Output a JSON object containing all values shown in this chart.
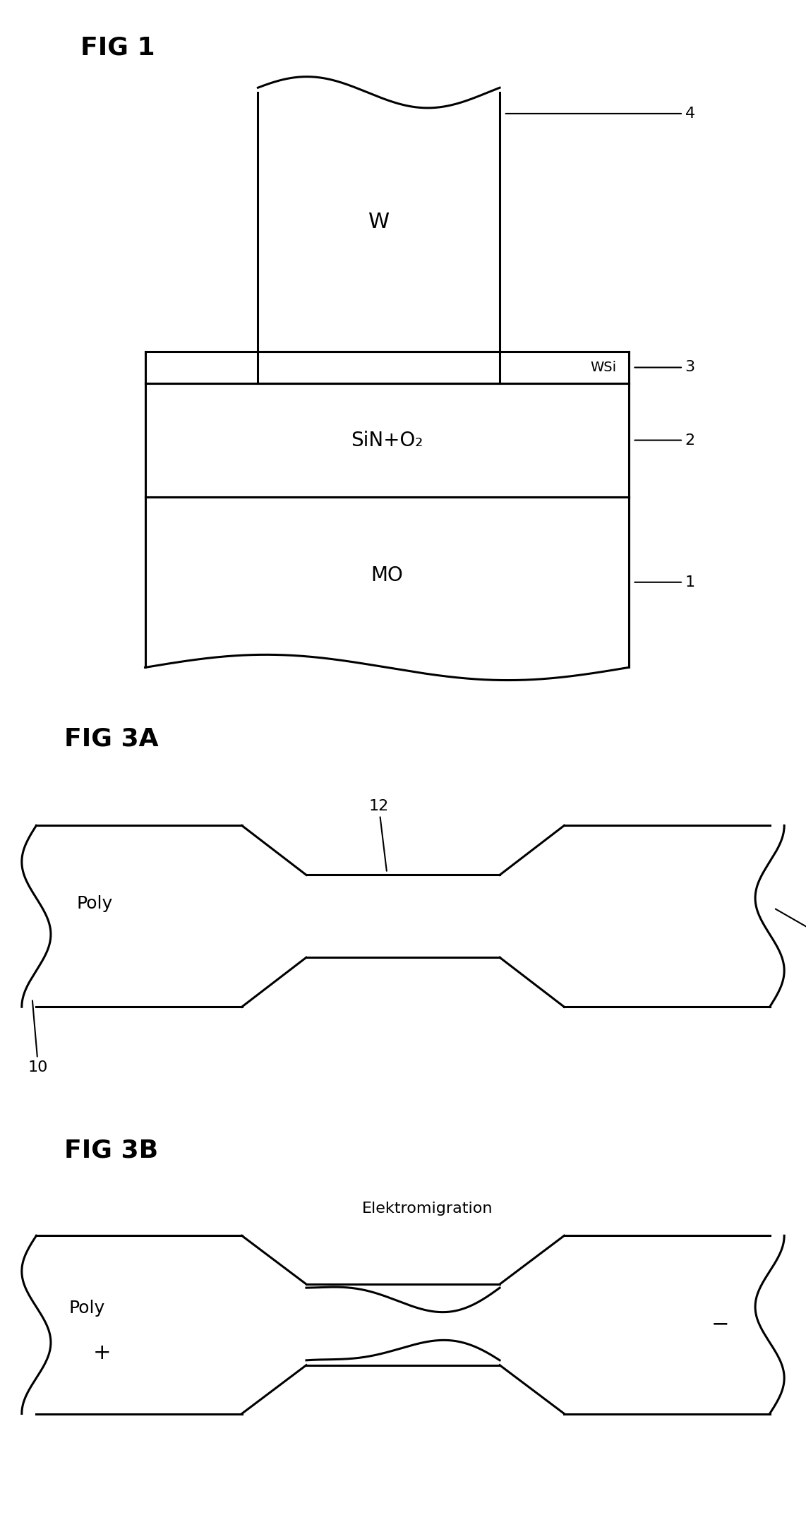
{
  "bg_color": "#ffffff",
  "line_color": "#000000",
  "line_width": 2.2,
  "fig1": {
    "title": "FIG 1",
    "title_fontsize": 26
  },
  "fig3a": {
    "title": "FIG 3A",
    "title_fontsize": 26
  },
  "fig3b": {
    "title": "FIG 3B",
    "title_fontsize": 26,
    "label_elektro": "Elektromigration"
  }
}
